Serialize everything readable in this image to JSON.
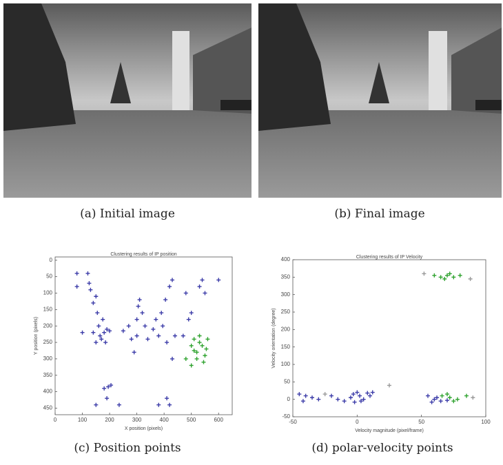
{
  "panels": [
    {
      "caption": "(a) Initial image"
    },
    {
      "caption": "(b) Final image"
    },
    {
      "caption": "(c) Position points"
    },
    {
      "caption": "(d) polar-velocity points"
    }
  ],
  "chart_data": [
    {
      "type": "scatter",
      "title": "Clustering results of IP position",
      "x_label": "X position (pixels)",
      "y_label": "Y position (pixels)",
      "xlim": [
        0,
        650
      ],
      "ylim": [
        -10,
        470
      ],
      "y_inverted": true,
      "xticks": [
        0,
        100,
        200,
        300,
        400,
        500,
        600
      ],
      "yticks": [
        0,
        50,
        100,
        150,
        200,
        250,
        300,
        350,
        400,
        450
      ],
      "series": [
        {
          "color": "#3b3ba8",
          "x": [
            80,
            80,
            100,
            120,
            125,
            130,
            140,
            150,
            155,
            160,
            165,
            170,
            150,
            140,
            180,
            185,
            190,
            200,
            175,
            180,
            195,
            205,
            190,
            150,
            235,
            250,
            270,
            280,
            290,
            300,
            305,
            310,
            320,
            330,
            300,
            340,
            360,
            370,
            380,
            390,
            395,
            405,
            410,
            420,
            430,
            430,
            440,
            410,
            380,
            420,
            480,
            490,
            500,
            530,
            540,
            550,
            470,
            600
          ],
          "values": [
            40,
            80,
            220,
            40,
            70,
            90,
            130,
            110,
            160,
            200,
            230,
            240,
            250,
            220,
            220,
            250,
            210,
            215,
            180,
            390,
            385,
            380,
            420,
            440,
            440,
            215,
            200,
            240,
            280,
            180,
            140,
            120,
            160,
            200,
            230,
            240,
            210,
            180,
            230,
            160,
            200,
            120,
            250,
            80,
            60,
            300,
            230,
            420,
            440,
            440,
            100,
            180,
            160,
            80,
            60,
            100,
            230,
            60
          ]
        },
        {
          "color": "#2ea22e",
          "x": [
            480,
            500,
            510,
            520,
            530,
            540,
            550,
            520,
            500,
            545,
            560,
            530,
            510,
            555
          ],
          "values": [
            300,
            260,
            240,
            280,
            230,
            260,
            290,
            300,
            320,
            310,
            240,
            250,
            275,
            270
          ]
        }
      ]
    },
    {
      "type": "scatter",
      "title": "Clustering results of IP Velocity",
      "x_label": "Velocity magnitude (pixel/frame)",
      "y_label": "Velocity orientation (degree)",
      "xlim": [
        -50,
        100
      ],
      "ylim": [
        -50,
        400
      ],
      "y_inverted": false,
      "xticks": [
        -50,
        0,
        50,
        100
      ],
      "yticks": [
        -50,
        0,
        50,
        100,
        150,
        200,
        250,
        300,
        350,
        400
      ],
      "series": [
        {
          "color": "#3b3ba8",
          "x": [
            -45,
            -40,
            -35,
            -30,
            -42,
            -20,
            -15,
            -10,
            -5,
            -3,
            0,
            2,
            5,
            8,
            -2,
            3,
            10,
            12,
            55,
            60,
            65,
            62,
            70,
            58
          ],
          "values": [
            15,
            10,
            5,
            0,
            -5,
            10,
            0,
            -5,
            5,
            15,
            20,
            10,
            0,
            18,
            -8,
            -5,
            10,
            20,
            10,
            0,
            -5,
            5,
            -3,
            -8
          ]
        },
        {
          "color": "#2ea22e",
          "x": [
            60,
            65,
            70,
            75,
            68,
            72,
            80,
            66,
            72,
            78,
            85,
            75,
            70
          ],
          "values": [
            355,
            350,
            355,
            350,
            345,
            360,
            355,
            10,
            5,
            0,
            10,
            -5,
            15
          ]
        },
        {
          "color": "#999999",
          "x": [
            52,
            88,
            25,
            90,
            -25
          ],
          "values": [
            360,
            345,
            40,
            5,
            15
          ]
        }
      ]
    }
  ]
}
